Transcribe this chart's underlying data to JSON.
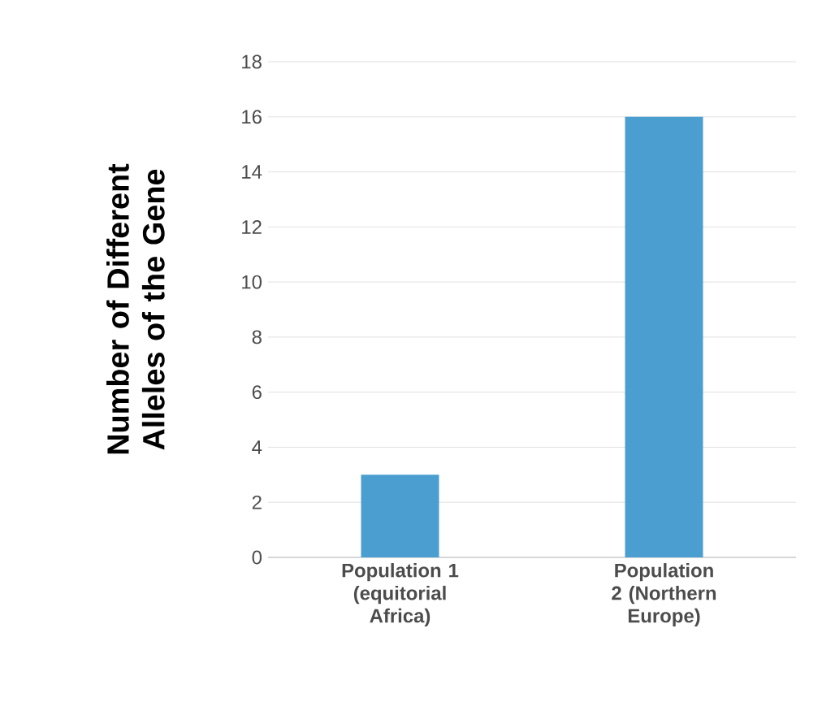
{
  "chart_data": {
    "type": "bar",
    "ylabel": "Number of Different Alleles of the Gene",
    "categories": [
      "Population 1 (equitorial Africa)",
      "Population 2 (Northern Europe)"
    ],
    "values": [
      3,
      16
    ],
    "color": "#4a9fd0",
    "ylim": [
      0,
      18
    ],
    "yticks": [
      0,
      2,
      4,
      6,
      8,
      10,
      12,
      14,
      16,
      18
    ],
    "grid": "y"
  }
}
